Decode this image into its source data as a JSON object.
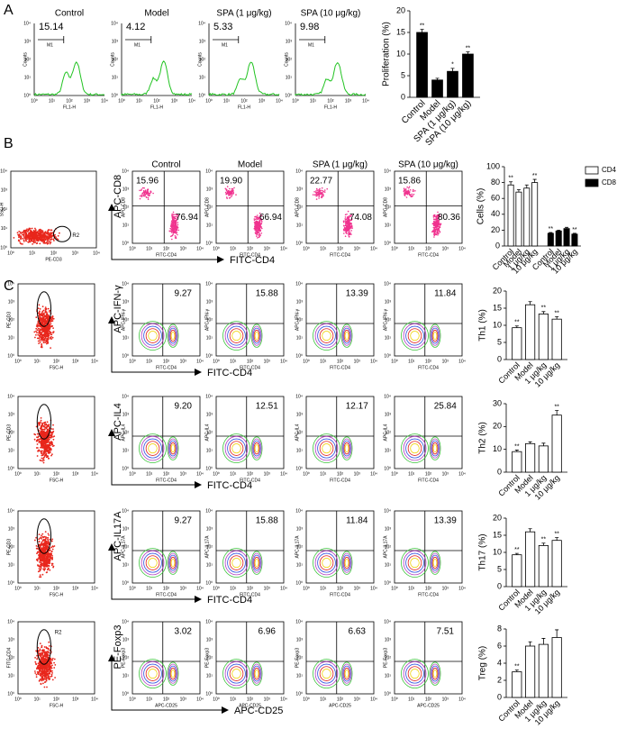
{
  "chart_data": [
    {
      "type": "bar",
      "ylabel": "Proliferation (%)",
      "categories": [
        "Control",
        "Model",
        "SPA (1 μg/kg)",
        "SPA (10 μg/kg)"
      ],
      "values": [
        15,
        4,
        6,
        10
      ],
      "errors": [
        0.7,
        0.4,
        0.7,
        0.5
      ],
      "annotations": [
        "**",
        null,
        "*",
        "**"
      ],
      "color": "#000000",
      "ylim": [
        0,
        20
      ],
      "yticks": [
        0,
        5,
        10,
        15,
        20
      ]
    },
    {
      "type": "bar",
      "ylabel": "Cells (%)",
      "categories": [
        "Control",
        "Model",
        "1 μg/kg",
        "10 μg/kg"
      ],
      "series": [
        {
          "name": "CD4",
          "color": "#ffffff",
          "values": [
            77,
            68,
            73,
            80
          ],
          "errors": [
            4,
            3,
            4,
            4
          ],
          "annotations": [
            "**",
            null,
            null,
            "**"
          ]
        },
        {
          "name": "CD8",
          "color": "#000000",
          "values": [
            16,
            19,
            22,
            15
          ],
          "errors": [
            1,
            1,
            1.5,
            1
          ],
          "annotations": [
            "**",
            null,
            null,
            "**"
          ]
        }
      ],
      "ylim": [
        0,
        100
      ],
      "yticks": [
        0,
        20,
        40,
        60,
        80,
        100
      ],
      "legend": "upper right"
    },
    {
      "type": "bar",
      "ylabel": "Th1 (%)",
      "categories": [
        "Control",
        "Model",
        "1 μg/kg",
        "10 μg/kg"
      ],
      "values": [
        9.3,
        16,
        13.3,
        11.8
      ],
      "errors": [
        0.5,
        0.9,
        0.7,
        0.7
      ],
      "annotations": [
        "**",
        null,
        "**",
        "**"
      ],
      "color": "#ffffff",
      "ylim": [
        0,
        20
      ],
      "yticks": [
        0,
        5,
        10,
        15,
        20
      ]
    },
    {
      "type": "bar",
      "ylabel": "Th2 (%)",
      "categories": [
        "Control",
        "Model",
        "1 μg/kg",
        "10 μg/kg"
      ],
      "values": [
        9,
        12.5,
        11.5,
        25
      ],
      "errors": [
        0.7,
        0.8,
        1.2,
        2
      ],
      "annotations": [
        "**",
        null,
        null,
        "**"
      ],
      "color": "#ffffff",
      "ylim": [
        0,
        30
      ],
      "yticks": [
        0,
        10,
        20,
        30
      ]
    },
    {
      "type": "bar",
      "ylabel": "Th17 (%)",
      "categories": [
        "Control",
        "Model",
        "1 μg/kg",
        "10 μg/kg"
      ],
      "values": [
        9.3,
        16,
        12,
        13.5
      ],
      "errors": [
        0.4,
        0.9,
        0.7,
        0.8
      ],
      "annotations": [
        "**",
        null,
        "**",
        "**"
      ],
      "color": "#ffffff",
      "ylim": [
        0,
        20
      ],
      "yticks": [
        0,
        5,
        10,
        15,
        20
      ]
    },
    {
      "type": "bar",
      "ylabel": "Treg (%)",
      "categories": [
        "Control",
        "Model",
        "1 μg/kg",
        "10 μg/kg"
      ],
      "values": [
        3,
        6,
        6.2,
        7
      ],
      "errors": [
        0.2,
        0.5,
        0.7,
        0.9
      ],
      "annotations": [
        "**",
        null,
        null,
        null
      ],
      "color": "#ffffff",
      "ylim": [
        0,
        8
      ],
      "yticks": [
        0,
        2,
        4,
        6,
        8
      ]
    }
  ],
  "panels": {
    "decades": [
      "10⁰",
      "10¹",
      "10²",
      "10³",
      "10⁴"
    ],
    "A": {
      "label": "A",
      "titles": [
        "Control",
        "Model",
        "SPA (1 μg/kg)",
        "SPA (10 μg/kg)"
      ],
      "percents": [
        "15.14",
        "4.12",
        "5.33",
        "9.98"
      ],
      "y_axis": "Counts",
      "x_axis": "FL1-H",
      "marker": "M1"
    },
    "B": {
      "label": "B",
      "gate": {
        "y_axis": "SSC-H",
        "x_axis": "PE-CD3",
        "region": "R2"
      },
      "y_label": "APC-CD8",
      "x_label": "FITC-CD4",
      "upper_left": [
        "15.96",
        "19.90",
        "22.77",
        "15.86"
      ],
      "lower_right": [
        "76.94",
        "66.94",
        "74.08",
        "80.36"
      ]
    },
    "C": {
      "label": "C",
      "rows": [
        {
          "gate_y": "PE-CD3",
          "gate_x": "FSC-H",
          "y_label": "APC-IFN-γ",
          "x_label": "FITC-CD4",
          "percents": [
            "9.27",
            "15.88",
            "13.39",
            "11.84"
          ]
        },
        {
          "gate_y": "PE-CD3",
          "gate_x": "FSC-H",
          "y_label": "APC-IL4",
          "x_label": "FITC-CD4",
          "percents": [
            "9.20",
            "12.51",
            "12.17",
            "25.84"
          ]
        },
        {
          "gate_y": "PE-CD3",
          "gate_x": "FSC-H",
          "y_label": "APC-IL17A",
          "x_label": "FITC-CD4",
          "percents": [
            "9.27",
            "15.88",
            "11.84",
            "13.39"
          ]
        },
        {
          "gate_y": "FITC-CD4",
          "gate_x": "FSC-H",
          "gate_region": "R2",
          "y_label": "PE-Foxp3",
          "x_label": "APC-CD25",
          "percents": [
            "3.02",
            "6.96",
            "6.63",
            "7.51"
          ]
        }
      ]
    }
  }
}
